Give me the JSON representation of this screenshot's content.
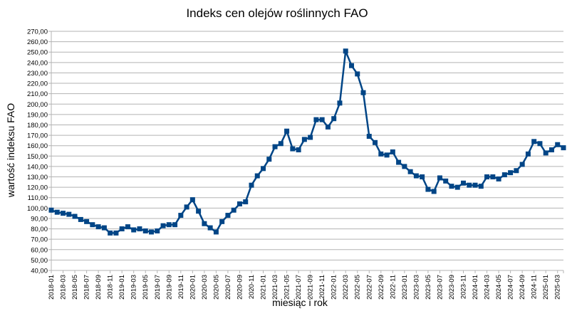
{
  "chart_data": {
    "type": "line",
    "title": "Indeks cen olejów roślinnych FAO",
    "xlabel": "miesiąc i rok",
    "ylabel": "wartość indeksu FAO",
    "ylim": [
      40,
      270
    ],
    "ytick_step": 10,
    "ytick_decimals": 2,
    "ytick_decimal_separator": ",",
    "grid": "horizontal",
    "legend": "none",
    "x_tick_labels_every": 2,
    "colors": {
      "line": "#004586",
      "grid": "#b3b3b3",
      "axis": "#b3b3b3"
    },
    "series": [
      {
        "x": [
          "2018-01",
          "2018-02",
          "2018-03",
          "2018-04",
          "2018-05",
          "2018-06",
          "2018-07",
          "2018-08",
          "2018-09",
          "2018-10",
          "2018-11",
          "2018-12",
          "2019-01",
          "2019-02",
          "2019-03",
          "2019-04",
          "2019-05",
          "2019-06",
          "2019-07",
          "2019-08",
          "2019-09",
          "2019-10",
          "2019-11",
          "2019-12",
          "2020-01",
          "2020-02",
          "2020-03",
          "2020-04",
          "2020-05",
          "2020-06",
          "2020-07",
          "2020-08",
          "2020-09",
          "2020-10",
          "2020-11",
          "2020-12",
          "2021-01",
          "2021-02",
          "2021-03",
          "2021-04",
          "2021-05",
          "2021-06",
          "2021-07",
          "2021-08",
          "2021-09",
          "2021-10",
          "2021-11",
          "2021-12",
          "2022-01",
          "2022-02",
          "2022-03",
          "2022-04",
          "2022-05",
          "2022-06",
          "2022-07",
          "2022-08",
          "2022-09",
          "2022-10",
          "2022-11",
          "2022-12",
          "2023-01",
          "2023-02",
          "2023-03",
          "2023-04",
          "2023-05",
          "2023-06",
          "2023-07",
          "2023-08",
          "2023-09",
          "2023-10",
          "2023-11",
          "2023-12",
          "2024-01",
          "2024-02",
          "2024-03",
          "2024-04",
          "2024-05",
          "2024-06",
          "2024-07",
          "2024-08",
          "2024-09",
          "2024-10",
          "2024-11",
          "2024-12",
          "2025-01",
          "2025-02",
          "2025-03",
          "2025-04"
        ],
        "values": [
          98,
          96,
          95,
          94,
          92,
          89,
          87,
          84,
          82,
          81,
          76,
          76,
          80,
          82,
          79,
          80,
          78,
          77,
          78,
          83,
          84,
          84,
          93,
          101,
          108,
          97,
          85,
          81,
          77,
          87,
          93,
          98,
          104,
          106,
          122,
          131,
          138,
          147,
          159,
          162,
          174,
          157,
          156,
          166,
          168,
          185,
          185,
          178,
          186,
          201,
          251,
          237,
          229,
          211,
          169,
          163,
          152,
          151,
          154,
          144,
          140,
          135,
          131,
          130,
          118,
          116,
          129,
          126,
          121,
          120,
          124,
          122,
          122,
          121,
          130,
          130,
          128,
          132,
          134,
          136,
          142,
          152,
          164,
          162,
          153,
          156,
          161,
          158
        ]
      }
    ]
  }
}
